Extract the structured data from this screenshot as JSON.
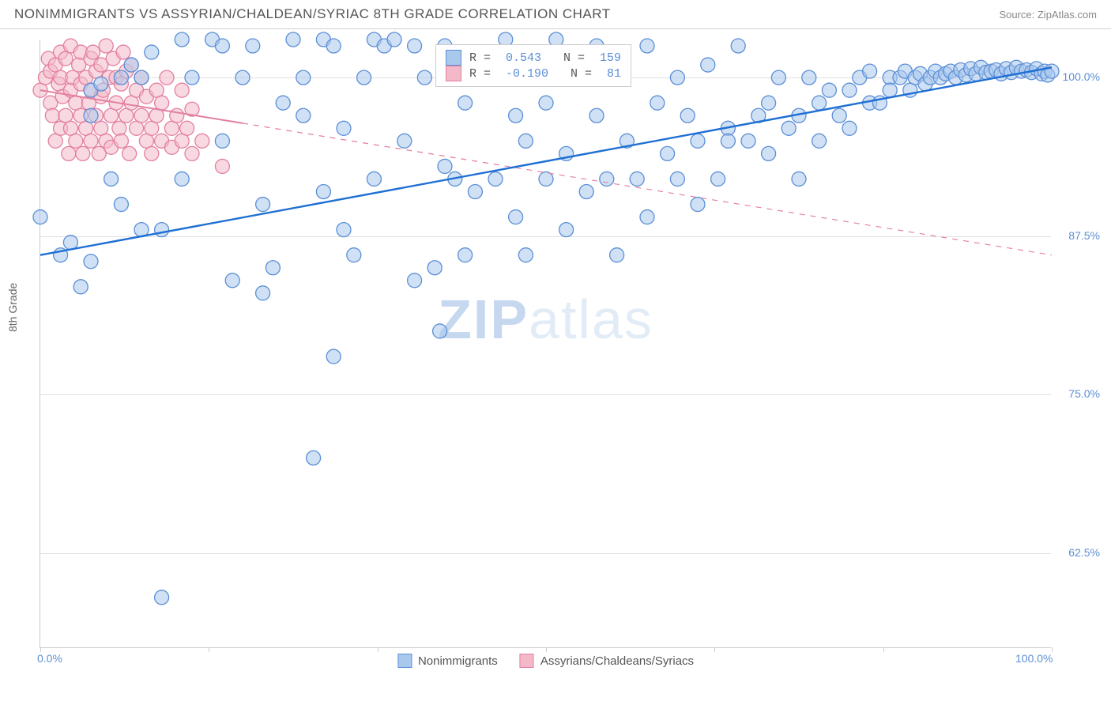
{
  "header": {
    "title": "NONIMMIGRANTS VS ASSYRIAN/CHALDEAN/SYRIAC 8TH GRADE CORRELATION CHART",
    "source": "Source: ZipAtlas.com"
  },
  "chart": {
    "type": "scatter",
    "ylabel": "8th Grade",
    "watermark": "ZIPatlas",
    "xlim": [
      0,
      100
    ],
    "ylim": [
      55,
      103
    ],
    "xtick_positions": [
      0,
      16.67,
      33.33,
      50,
      66.67,
      83.33,
      100
    ],
    "xtick_labels": {
      "0": "0.0%",
      "100": "100.0%"
    },
    "ytick_labels": [
      {
        "v": 62.5,
        "label": "62.5%"
      },
      {
        "v": 75.0,
        "label": "75.0%"
      },
      {
        "v": 87.5,
        "label": "87.5%"
      },
      {
        "v": 100.0,
        "label": "100.0%"
      }
    ],
    "background_color": "#ffffff",
    "grid_color": "#e0e0e0",
    "axis_color": "#cccccc",
    "label_color": "#5b8fd6",
    "text_color": "#666666"
  },
  "series": {
    "blue": {
      "name": "Nonimmigrants",
      "color_fill": "#a9c9ec",
      "color_stroke": "#5b8fd6",
      "fill_opacity": 0.55,
      "marker_radius": 9,
      "R": "0.543",
      "N": "159",
      "trend": {
        "x1": 0,
        "y1": 86.0,
        "x2": 100,
        "y2": 100.8,
        "solid_until_x": 100,
        "dash_from_x": 100,
        "stroke": "#1f6fd4",
        "width": 2.4
      },
      "points": [
        [
          0,
          89
        ],
        [
          2,
          86
        ],
        [
          3,
          87
        ],
        [
          4,
          83.5
        ],
        [
          5,
          85.5
        ],
        [
          5,
          97
        ],
        [
          5,
          99
        ],
        [
          6,
          99.5
        ],
        [
          7,
          92
        ],
        [
          8,
          100
        ],
        [
          8,
          90
        ],
        [
          9,
          101
        ],
        [
          10,
          88
        ],
        [
          10,
          100
        ],
        [
          11,
          102
        ],
        [
          12,
          88
        ],
        [
          12,
          59
        ],
        [
          14,
          103
        ],
        [
          14,
          92
        ],
        [
          15,
          100
        ],
        [
          17,
          103
        ],
        [
          18,
          102.5
        ],
        [
          18,
          95
        ],
        [
          19,
          84
        ],
        [
          20,
          100
        ],
        [
          21,
          102.5
        ],
        [
          22,
          90
        ],
        [
          22,
          83
        ],
        [
          23,
          85
        ],
        [
          24,
          98
        ],
        [
          25,
          103
        ],
        [
          26,
          100
        ],
        [
          26,
          97
        ],
        [
          27,
          70
        ],
        [
          28,
          103
        ],
        [
          28,
          91
        ],
        [
          29,
          78
        ],
        [
          29,
          102.5
        ],
        [
          30,
          96
        ],
        [
          30,
          88
        ],
        [
          31,
          86
        ],
        [
          32,
          100
        ],
        [
          33,
          92
        ],
        [
          33,
          103
        ],
        [
          34,
          102.5
        ],
        [
          35,
          103
        ],
        [
          36,
          95
        ],
        [
          37,
          102.5
        ],
        [
          37,
          84
        ],
        [
          38,
          100
        ],
        [
          39,
          85
        ],
        [
          39.5,
          80
        ],
        [
          40,
          102.5
        ],
        [
          40,
          93
        ],
        [
          41,
          92
        ],
        [
          42,
          98
        ],
        [
          42,
          86
        ],
        [
          43,
          91
        ],
        [
          44,
          100
        ],
        [
          45,
          92
        ],
        [
          46,
          103
        ],
        [
          47,
          97
        ],
        [
          47,
          89
        ],
        [
          48,
          95
        ],
        [
          48,
          86
        ],
        [
          49,
          101
        ],
        [
          50,
          92
        ],
        [
          50,
          98
        ],
        [
          51,
          103
        ],
        [
          52,
          94
        ],
        [
          52,
          88
        ],
        [
          53,
          100
        ],
        [
          54,
          91
        ],
        [
          55,
          102.5
        ],
        [
          55,
          97
        ],
        [
          56,
          92
        ],
        [
          57,
          86
        ],
        [
          57,
          100
        ],
        [
          58,
          95
        ],
        [
          59,
          92
        ],
        [
          60,
          89
        ],
        [
          60,
          102.5
        ],
        [
          61,
          98
        ],
        [
          62,
          94
        ],
        [
          63,
          92
        ],
        [
          63,
          100
        ],
        [
          64,
          97
        ],
        [
          65,
          95
        ],
        [
          65,
          90
        ],
        [
          66,
          101
        ],
        [
          67,
          92
        ],
        [
          68,
          96
        ],
        [
          68,
          95
        ],
        [
          69,
          102.5
        ],
        [
          70,
          95
        ],
        [
          71,
          97
        ],
        [
          72,
          98
        ],
        [
          72,
          94
        ],
        [
          73,
          100
        ],
        [
          74,
          96
        ],
        [
          75,
          97
        ],
        [
          75,
          92
        ],
        [
          76,
          100
        ],
        [
          77,
          98
        ],
        [
          77,
          95
        ],
        [
          78,
          99
        ],
        [
          79,
          97
        ],
        [
          80,
          99
        ],
        [
          80,
          96
        ],
        [
          81,
          100
        ],
        [
          82,
          100.5
        ],
        [
          82,
          98
        ],
        [
          83,
          98
        ],
        [
          84,
          100
        ],
        [
          84,
          99
        ],
        [
          85,
          100
        ],
        [
          85.5,
          100.5
        ],
        [
          86,
          99
        ],
        [
          86.5,
          100
        ],
        [
          87,
          100.3
        ],
        [
          87.5,
          99.5
        ],
        [
          88,
          100
        ],
        [
          88.5,
          100.5
        ],
        [
          89,
          100
        ],
        [
          89.5,
          100.3
        ],
        [
          90,
          100.5
        ],
        [
          90.5,
          100
        ],
        [
          91,
          100.6
        ],
        [
          91.5,
          100.2
        ],
        [
          92,
          100.7
        ],
        [
          92.5,
          100.3
        ],
        [
          93,
          100.8
        ],
        [
          93.5,
          100.4
        ],
        [
          94,
          100.5
        ],
        [
          94.5,
          100.6
        ],
        [
          95,
          100.3
        ],
        [
          95.5,
          100.7
        ],
        [
          96,
          100.4
        ],
        [
          96.5,
          100.8
        ],
        [
          97,
          100.5
        ],
        [
          97.5,
          100.6
        ],
        [
          98,
          100.4
        ],
        [
          98.5,
          100.7
        ],
        [
          99,
          100.3
        ],
        [
          99.3,
          100.5
        ],
        [
          99.6,
          100.2
        ],
        [
          100,
          100.5
        ]
      ]
    },
    "pink": {
      "name": "Assyrians/Chaldeans/Syriacs",
      "color_fill": "#f4b9c9",
      "color_stroke": "#e37fa0",
      "fill_opacity": 0.55,
      "marker_radius": 9,
      "R": "-0.190",
      "N": "81",
      "trend": {
        "x1": 0,
        "y1": 99.0,
        "x2": 100,
        "y2": 86.0,
        "solid_until_x": 20,
        "dash_from_x": 20,
        "stroke": "#e37fa0",
        "width": 2.0
      },
      "points": [
        [
          0,
          99
        ],
        [
          0.5,
          100
        ],
        [
          0.8,
          101.5
        ],
        [
          1,
          98
        ],
        [
          1,
          100.5
        ],
        [
          1.2,
          97
        ],
        [
          1.5,
          101
        ],
        [
          1.5,
          95
        ],
        [
          1.8,
          99.5
        ],
        [
          2,
          102
        ],
        [
          2,
          96
        ],
        [
          2,
          100
        ],
        [
          2.2,
          98.5
        ],
        [
          2.5,
          97
        ],
        [
          2.5,
          101.5
        ],
        [
          2.8,
          94
        ],
        [
          3,
          99
        ],
        [
          3,
          102.5
        ],
        [
          3,
          96
        ],
        [
          3.2,
          100
        ],
        [
          3.5,
          98
        ],
        [
          3.5,
          95
        ],
        [
          3.8,
          101
        ],
        [
          4,
          97
        ],
        [
          4,
          99.5
        ],
        [
          4,
          102
        ],
        [
          4.2,
          94
        ],
        [
          4.5,
          100
        ],
        [
          4.5,
          96
        ],
        [
          4.8,
          98
        ],
        [
          5,
          101.5
        ],
        [
          5,
          95
        ],
        [
          5,
          99
        ],
        [
          5.2,
          102
        ],
        [
          5.5,
          97
        ],
        [
          5.5,
          100.5
        ],
        [
          5.8,
          94
        ],
        [
          6,
          98.5
        ],
        [
          6,
          101
        ],
        [
          6,
          96
        ],
        [
          6.2,
          99
        ],
        [
          6.5,
          102.5
        ],
        [
          6.5,
          95
        ],
        [
          6.8,
          100
        ],
        [
          7,
          97
        ],
        [
          7,
          94.5
        ],
        [
          7.2,
          101.5
        ],
        [
          7.5,
          98
        ],
        [
          7.5,
          100
        ],
        [
          7.8,
          96
        ],
        [
          8,
          99.5
        ],
        [
          8,
          95
        ],
        [
          8.2,
          102
        ],
        [
          8.5,
          97
        ],
        [
          8.5,
          100.5
        ],
        [
          8.8,
          94
        ],
        [
          9,
          98
        ],
        [
          9,
          101
        ],
        [
          9.5,
          96
        ],
        [
          9.5,
          99
        ],
        [
          10,
          97
        ],
        [
          10,
          100
        ],
        [
          10.5,
          95
        ],
        [
          10.5,
          98.5
        ],
        [
          11,
          96
        ],
        [
          11,
          94
        ],
        [
          11.5,
          99
        ],
        [
          11.5,
          97
        ],
        [
          12,
          95
        ],
        [
          12,
          98
        ],
        [
          12.5,
          100
        ],
        [
          13,
          96
        ],
        [
          13,
          94.5
        ],
        [
          13.5,
          97
        ],
        [
          14,
          99
        ],
        [
          14,
          95
        ],
        [
          14.5,
          96
        ],
        [
          15,
          97.5
        ],
        [
          15,
          94
        ],
        [
          16,
          95
        ],
        [
          18,
          93
        ]
      ]
    }
  },
  "legend": {
    "items": [
      {
        "key": "blue",
        "label": "Nonimmigrants"
      },
      {
        "key": "pink",
        "label": "Assyrians/Chaldeans/Syriacs"
      }
    ]
  }
}
